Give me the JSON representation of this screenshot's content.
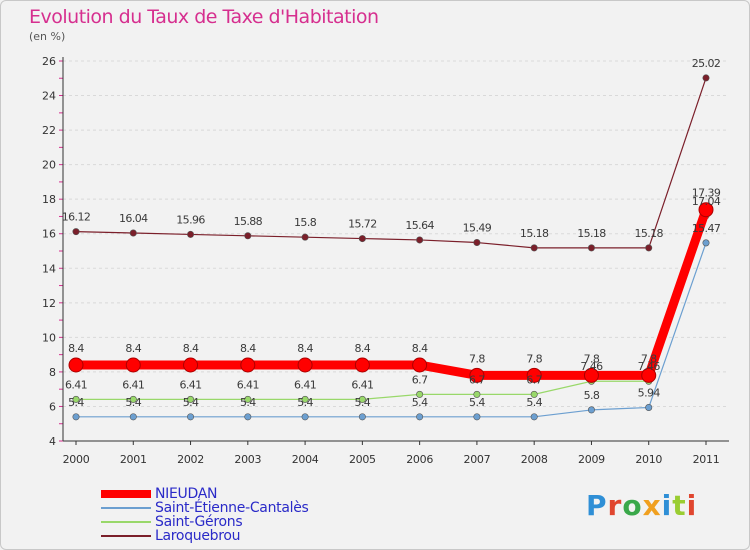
{
  "title": "Evolution du Taux de Taxe d'Habitation",
  "subtitle": "(en %)",
  "logo": "Proxiti",
  "chart_data": {
    "type": "line",
    "title": "Evolution du Taux de Taxe d'Habitation",
    "ylabel": "(en %)",
    "xlabel": "",
    "x": [
      "2000",
      "2001",
      "2002",
      "2003",
      "2004",
      "2005",
      "2006",
      "2007",
      "2008",
      "2009",
      "2010",
      "2011"
    ],
    "yticks": [
      4,
      6,
      8,
      10,
      12,
      14,
      16,
      18,
      20,
      22,
      24,
      26
    ],
    "ylim": [
      4,
      26
    ],
    "grid": "horizontal dashed",
    "legend_position": "bottom-left",
    "series": [
      {
        "name": "Laroquebrou",
        "color": "#7b1f2a",
        "values": [
          16.12,
          16.04,
          15.96,
          15.88,
          15.8,
          15.72,
          15.64,
          15.49,
          15.18,
          15.18,
          15.18,
          25.02
        ],
        "labels": [
          "16.12",
          "16.04",
          "15.96",
          "15.88",
          "15.8",
          "15.72",
          "15.64",
          "15.49",
          "15.18",
          "15.18",
          "15.18",
          "25.02"
        ]
      },
      {
        "name": "Saint-Gérons",
        "color": "#99d86a",
        "values": [
          6.41,
          6.41,
          6.41,
          6.41,
          6.41,
          6.41,
          6.7,
          6.7,
          6.7,
          7.46,
          7.46,
          17.04
        ],
        "labels": [
          "6.41",
          "6.41",
          "6.41",
          "6.41",
          "6.41",
          "6.41",
          "6.7",
          "6.7",
          "6.7",
          "7.46",
          "7.46",
          "17.04"
        ]
      },
      {
        "name": "Saint-Étienne-Cantalès",
        "color": "#6c9fd0",
        "values": [
          5.4,
          5.4,
          5.4,
          5.4,
          5.4,
          5.4,
          5.4,
          5.4,
          5.4,
          5.8,
          5.94,
          15.47
        ],
        "labels": [
          "5.4",
          "5.4",
          "5.4",
          "5.4",
          "5.4",
          "5.4",
          "5.4",
          "5.4",
          "5.4",
          "5.8",
          "5.94",
          "15.47"
        ]
      },
      {
        "name": "NIEUDAN",
        "color": "#ff0000",
        "values": [
          8.4,
          8.4,
          8.4,
          8.4,
          8.4,
          8.4,
          8.4,
          7.8,
          7.8,
          7.8,
          7.8,
          17.39
        ],
        "labels": [
          "8.4",
          "8.4",
          "8.4",
          "8.4",
          "8.4",
          "8.4",
          "8.4",
          "7.8",
          "7.8",
          "7.8",
          "7.8",
          "17.39"
        ]
      }
    ],
    "legend_order": [
      "NIEUDAN",
      "Saint-Étienne-Cantalès",
      "Saint-Gérons",
      "Laroquebrou"
    ]
  }
}
